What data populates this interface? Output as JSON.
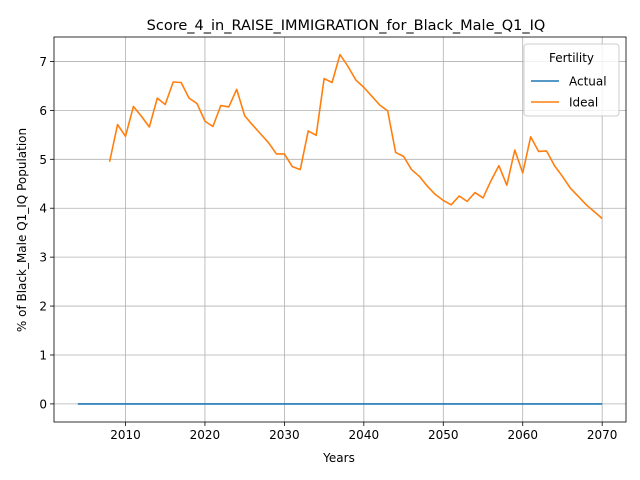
{
  "chart_data": {
    "type": "line",
    "title": "Score_4_in_RAISE_IMMIGRATION_for_Black_Male_Q1_IQ",
    "xlabel": "Years",
    "ylabel": "% of Black_Male Q1_IQ Population",
    "xlim": [
      2001,
      2073
    ],
    "ylim": [
      -0.37,
      7.5
    ],
    "xticks": [
      2010,
      2020,
      2030,
      2040,
      2050,
      2060,
      2070
    ],
    "yticks": [
      0,
      1,
      2,
      3,
      4,
      5,
      6,
      7
    ],
    "grid": true,
    "legend": {
      "title": "Fertility",
      "placement": "top-right"
    },
    "series": [
      {
        "name": "Actual",
        "color": "#1f77b4",
        "x": [
          2004,
          2070
        ],
        "y": [
          0,
          0
        ]
      },
      {
        "name": "Ideal",
        "color": "#ff7f0e",
        "x": [
          2008,
          2009,
          2010,
          2011,
          2012,
          2013,
          2014,
          2015,
          2016,
          2017,
          2018,
          2019,
          2020,
          2021,
          2022,
          2023,
          2024,
          2025,
          2026,
          2027,
          2028,
          2029,
          2030,
          2031,
          2032,
          2033,
          2034,
          2035,
          2036,
          2037,
          2038,
          2039,
          2040,
          2041,
          2042,
          2043,
          2044,
          2045,
          2046,
          2047,
          2048,
          2049,
          2050,
          2051,
          2052,
          2053,
          2054,
          2055,
          2056,
          2057,
          2058,
          2059,
          2060,
          2061,
          2062,
          2063,
          2064,
          2065,
          2066,
          2067,
          2068,
          2069,
          2070
        ],
        "y": [
          4.95,
          5.71,
          5.47,
          6.08,
          5.88,
          5.66,
          6.25,
          6.12,
          6.58,
          6.57,
          6.25,
          6.14,
          5.78,
          5.67,
          6.1,
          6.07,
          6.43,
          5.89,
          5.7,
          5.52,
          5.34,
          5.11,
          5.11,
          4.85,
          4.79,
          5.58,
          5.49,
          6.65,
          6.57,
          7.14,
          6.9,
          6.62,
          6.47,
          6.29,
          6.11,
          5.99,
          5.14,
          5.06,
          4.79,
          4.65,
          4.45,
          4.28,
          4.16,
          4.07,
          4.25,
          4.14,
          4.32,
          4.21,
          4.56,
          4.87,
          4.47,
          5.19,
          4.72,
          5.46,
          5.16,
          5.17,
          4.87,
          4.65,
          4.41,
          4.24,
          4.07,
          3.93,
          3.79
        ]
      }
    ]
  }
}
